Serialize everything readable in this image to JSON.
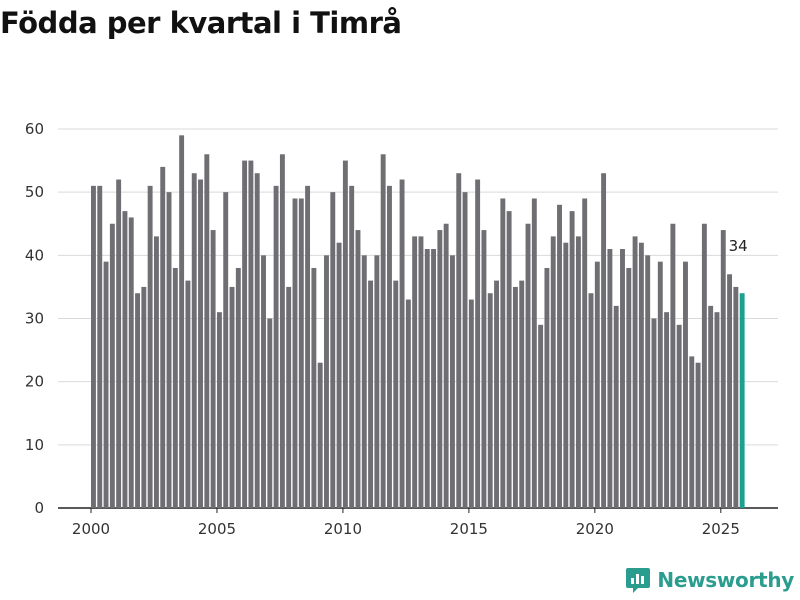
{
  "chart_data": {
    "type": "bar",
    "title": "Födda per kvartal i Timrå",
    "xlabel": "",
    "ylabel": "",
    "ylim": [
      0,
      60
    ],
    "yticks": [
      0,
      10,
      20,
      30,
      40,
      50,
      60
    ],
    "xticks": [
      2000,
      2005,
      2010,
      2015,
      2020,
      2025
    ],
    "x_start": 2000,
    "periods_per_year": 4,
    "values": [
      51,
      51,
      39,
      45,
      52,
      47,
      46,
      34,
      35,
      51,
      43,
      54,
      50,
      38,
      59,
      36,
      53,
      52,
      56,
      44,
      31,
      50,
      35,
      38,
      55,
      55,
      53,
      40,
      30,
      51,
      56,
      35,
      49,
      49,
      51,
      38,
      23,
      40,
      50,
      42,
      55,
      51,
      44,
      40,
      36,
      40,
      56,
      51,
      36,
      52,
      33,
      43,
      43,
      41,
      41,
      44,
      45,
      40,
      53,
      50,
      33,
      52,
      44,
      34,
      36,
      49,
      47,
      35,
      36,
      45,
      49,
      29,
      38,
      43,
      48,
      42,
      47,
      43,
      49,
      34,
      39,
      53,
      41,
      32,
      41,
      38,
      43,
      42,
      40,
      30,
      39,
      31,
      45,
      29,
      39,
      24,
      23,
      45,
      32,
      31,
      44,
      37,
      35,
      34
    ],
    "highlight_index": 103,
    "highlight_label": "34",
    "colors": {
      "bar": "#6f6e73",
      "highlight": "#1a9f93",
      "grid": "#d9d9d9",
      "axis": "#222222"
    }
  },
  "brand": {
    "name": "Newsworthy"
  }
}
